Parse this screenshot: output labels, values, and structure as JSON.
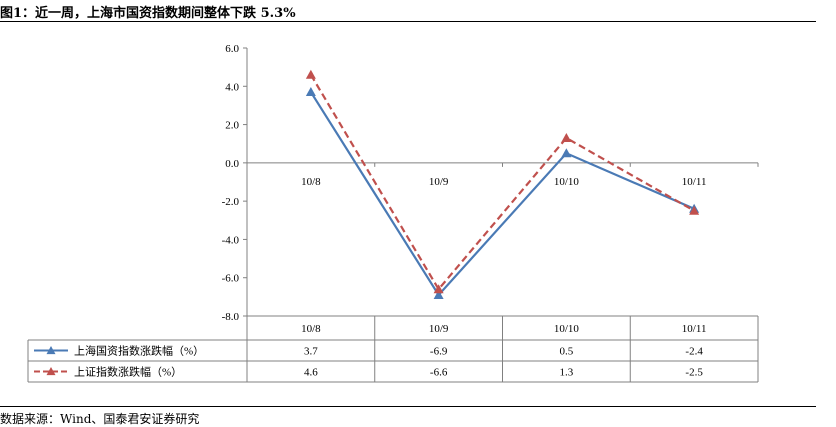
{
  "title": "图1：近一周，上海市国资指数期间整体下跌 5.3%",
  "source": "数据来源：Wind、国泰君安证券研究",
  "chart_data": {
    "type": "line",
    "categories": [
      "10/8",
      "10/9",
      "10/10",
      "10/11"
    ],
    "ylim": [
      -8.0,
      6.0
    ],
    "yticks": [
      "6.0",
      "4.0",
      "2.0",
      "0.0",
      "-2.0",
      "-4.0",
      "-6.0",
      "-8.0"
    ],
    "yticks_values": [
      6,
      4,
      2,
      0,
      -2,
      -4,
      -6,
      -8
    ],
    "grid": false,
    "legend": "bottom data table",
    "series": [
      {
        "name": "上海国资指数涨跌幅（%）",
        "values": [
          3.7,
          -6.9,
          0.5,
          -2.4
        ],
        "labels": [
          "3.7",
          "-6.9",
          "0.5",
          "-2.4"
        ],
        "color": "#4a7ab5",
        "style": "solid",
        "marker": "triangle"
      },
      {
        "name": "上证指数涨跌幅（%）",
        "values": [
          4.6,
          -6.6,
          1.3,
          -2.5
        ],
        "labels": [
          "4.6",
          "-6.6",
          "1.3",
          "-2.5"
        ],
        "color": "#c0504d",
        "style": "dashed",
        "marker": "triangle"
      }
    ]
  }
}
